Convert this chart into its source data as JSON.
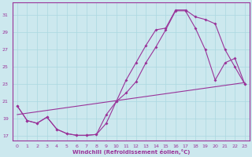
{
  "xlabel": "Windchill (Refroidissement éolien,°C)",
  "xlim": [
    -0.5,
    23.5
  ],
  "ylim": [
    16.5,
    32.5
  ],
  "yticks": [
    17,
    19,
    21,
    23,
    25,
    27,
    29,
    31
  ],
  "xticks": [
    0,
    1,
    2,
    3,
    4,
    5,
    6,
    7,
    8,
    9,
    10,
    11,
    12,
    13,
    14,
    15,
    16,
    17,
    18,
    19,
    20,
    21,
    22,
    23
  ],
  "bg_color": "#cce8ee",
  "line_color": "#993399",
  "grid_color": "#aad8e0",
  "line1_x": [
    0,
    1,
    2,
    3,
    4,
    5,
    6,
    7,
    8,
    9,
    10,
    11,
    12,
    13,
    14,
    15,
    16,
    17,
    18,
    19,
    20,
    21,
    22,
    23
  ],
  "line1_y": [
    20.5,
    18.8,
    18.5,
    19.2,
    17.8,
    17.3,
    17.1,
    17.1,
    17.2,
    18.5,
    21.0,
    22.0,
    23.3,
    25.5,
    27.3,
    29.3,
    31.5,
    31.5,
    29.5,
    27.0,
    23.5,
    25.5,
    26.0,
    23.0
  ],
  "line2_x": [
    0,
    1,
    2,
    3,
    4,
    5,
    6,
    7,
    8,
    9,
    10,
    11,
    12,
    13,
    14,
    15,
    16,
    17,
    18,
    19,
    20,
    21,
    22,
    23
  ],
  "line2_y": [
    20.5,
    18.8,
    18.5,
    19.2,
    17.8,
    17.3,
    17.1,
    17.1,
    17.2,
    19.5,
    21.0,
    23.5,
    25.5,
    27.5,
    29.3,
    29.5,
    31.6,
    31.6,
    30.8,
    30.5,
    30.0,
    27.0,
    25.0,
    23.0
  ],
  "line3_x": [
    0,
    23
  ],
  "line3_y": [
    19.5,
    23.2
  ]
}
